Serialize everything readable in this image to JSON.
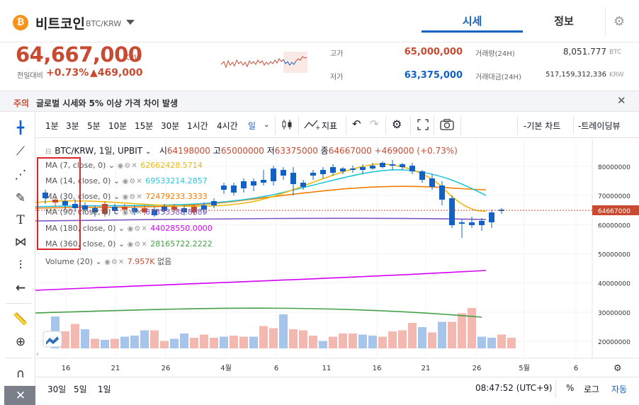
{
  "header": {
    "coin_logo": "₿",
    "coin_name": "비트코인",
    "pair": "BTC/KRW",
    "tabs": [
      {
        "label": "시세",
        "active": true
      },
      {
        "label": "정보",
        "active": false
      }
    ]
  },
  "ticker": {
    "price": "64,667,000",
    "unit": "KRW",
    "prev_label": "전일대비",
    "change_pct": "+0.73%",
    "change_amt": "▲469,000",
    "high_label": "고가",
    "high": "65,000,000",
    "low_label": "저가",
    "low": "63,375,000",
    "volume_label": "거래량(24H)",
    "volume": "8,051.777",
    "volume_unit": "BTC",
    "amount_label": "거래대금(24H)",
    "amount": "517,159,312,336",
    "amount_unit": "KRW"
  },
  "notice": {
    "tag": "주의",
    "text": "글로벌 시세와 5% 이상 가격 차이 발생",
    "close": "✕"
  },
  "toolbar": {
    "intervals": [
      "1분",
      "3분",
      "5분",
      "10분",
      "15분",
      "30분",
      "1시간",
      "4시간",
      "일"
    ],
    "active_interval": "일",
    "indicators": "지표",
    "basic_chart": "-기본 차트",
    "trading_view": "-트레이딩뷰"
  },
  "legend": {
    "title": "BTC/KRW, 1일, UPBIT",
    "open_l": "시",
    "open": "64198000",
    "high_l": "고",
    "high": "65000000",
    "low_l": "저",
    "low": "63375000",
    "close_l": "종",
    "close": "64667000",
    "change": "+469000 (+0.73%)",
    "mas": [
      {
        "label": "MA (7, close, 0)",
        "value": "62662428.5714",
        "color": "#f0b90b"
      },
      {
        "label": "MA (14, close, 0)",
        "value": "69533214.2857",
        "color": "#26c6da"
      },
      {
        "label": "MA (30, close, 0)",
        "value": "72479233.3333",
        "color": "#f57c00"
      },
      {
        "label": "MA (90, close, 0)",
        "value": "63333388.8889",
        "color": "#7e57c2"
      },
      {
        "label": "MA (180, close, 0)",
        "value": "44028550.0000",
        "color": "#d500f9"
      },
      {
        "label": "MA (360, close, 0)",
        "value": "28165722.2222",
        "color": "#43a047"
      }
    ],
    "volume_label": "Volume (20)",
    "volume_value": "7.957K",
    "volume_extra": "없음"
  },
  "chart_data": {
    "type": "candlestick",
    "y_ticks": [
      "80000000",
      "70000000",
      "60000000",
      "50000000",
      "40000000",
      "30000000",
      "20000000"
    ],
    "x_ticks": [
      "16",
      "21",
      "26",
      "4월",
      "6",
      "11",
      "16",
      "21",
      "26",
      "5월",
      "6"
    ],
    "last_price_label": "64667000",
    "ylim": [
      17000000,
      87000000
    ]
  },
  "bottom": {
    "ranges": [
      "30일",
      "5일",
      "1일"
    ],
    "time": "08:47:52 (UTC+9)",
    "pct": "%",
    "log": "로그",
    "auto": "자동"
  },
  "colors": {
    "up": "#c84a31",
    "down": "#1261c4",
    "accent": "#1261c4"
  }
}
